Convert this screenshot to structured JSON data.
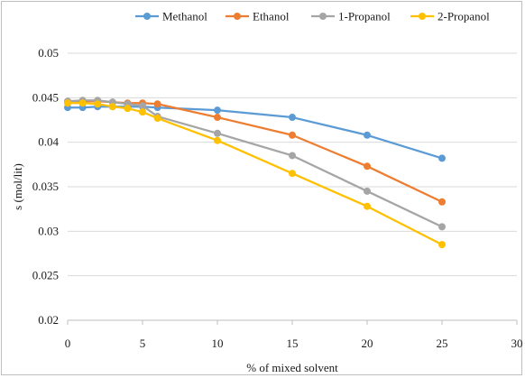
{
  "chart_data": {
    "type": "line",
    "xlabel": "% of mixed solvent",
    "ylabel": "s (mol/lit)",
    "xlim": [
      0,
      30
    ],
    "ylim": [
      0.02,
      0.05
    ],
    "x_ticks": [
      0,
      5,
      10,
      15,
      20,
      25,
      30
    ],
    "y_ticks": [
      0.02,
      0.025,
      0.03,
      0.035,
      0.04,
      0.045,
      0.05
    ],
    "y_tick_labels": [
      "0.02",
      "0.025",
      "0.03",
      "0.035",
      "0.04",
      "0.045",
      "0.05"
    ],
    "grid": "horizontal",
    "legend_position": "top",
    "x": [
      0,
      1,
      2,
      3,
      4,
      5,
      6,
      10,
      15,
      20,
      25
    ],
    "series": [
      {
        "name": "Methanol",
        "color": "#5b9bd5",
        "values": [
          0.0439,
          0.0439,
          0.044,
          0.044,
          0.044,
          0.044,
          0.0439,
          0.0436,
          0.0428,
          0.0408,
          0.0382
        ]
      },
      {
        "name": "Ethanol",
        "color": "#ed7d31",
        "values": [
          0.0446,
          0.0446,
          0.0446,
          0.0445,
          0.0444,
          0.0444,
          0.0443,
          0.0428,
          0.0408,
          0.0373,
          0.0333
        ]
      },
      {
        "name": "1-Propanol",
        "color": "#a5a5a5",
        "values": [
          0.0446,
          0.0447,
          0.0447,
          0.0445,
          0.0443,
          0.0441,
          0.0429,
          0.041,
          0.0385,
          0.0345,
          0.0305
        ]
      },
      {
        "name": "2-Propanol",
        "color": "#ffc000",
        "values": [
          0.0444,
          0.0444,
          0.0443,
          0.044,
          0.0438,
          0.0434,
          0.0427,
          0.0402,
          0.0365,
          0.0328,
          0.0285
        ]
      }
    ]
  }
}
